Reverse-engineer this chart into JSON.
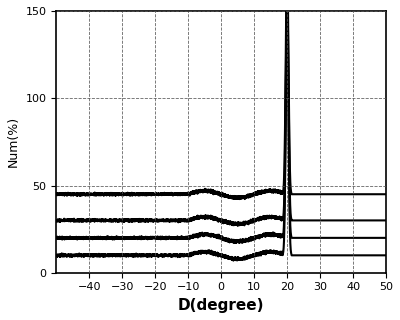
{
  "xlabel": "D(degree)",
  "ylabel": "Num(%)",
  "xlim": [
    -50,
    50
  ],
  "ylim": [
    0,
    150
  ],
  "xticks": [
    -40,
    -30,
    -20,
    -10,
    0,
    10,
    20,
    30,
    40,
    50
  ],
  "yticks": [
    0,
    50,
    100,
    150
  ],
  "spike_x": 20,
  "spike_height": 135,
  "baselines": [
    10,
    20,
    30,
    45
  ],
  "line_color": "#000000",
  "background": "#ffffff",
  "grid_color": "#555555",
  "xlabel_fontsize": 11,
  "ylabel_fontsize": 9,
  "tick_fontsize": 8
}
